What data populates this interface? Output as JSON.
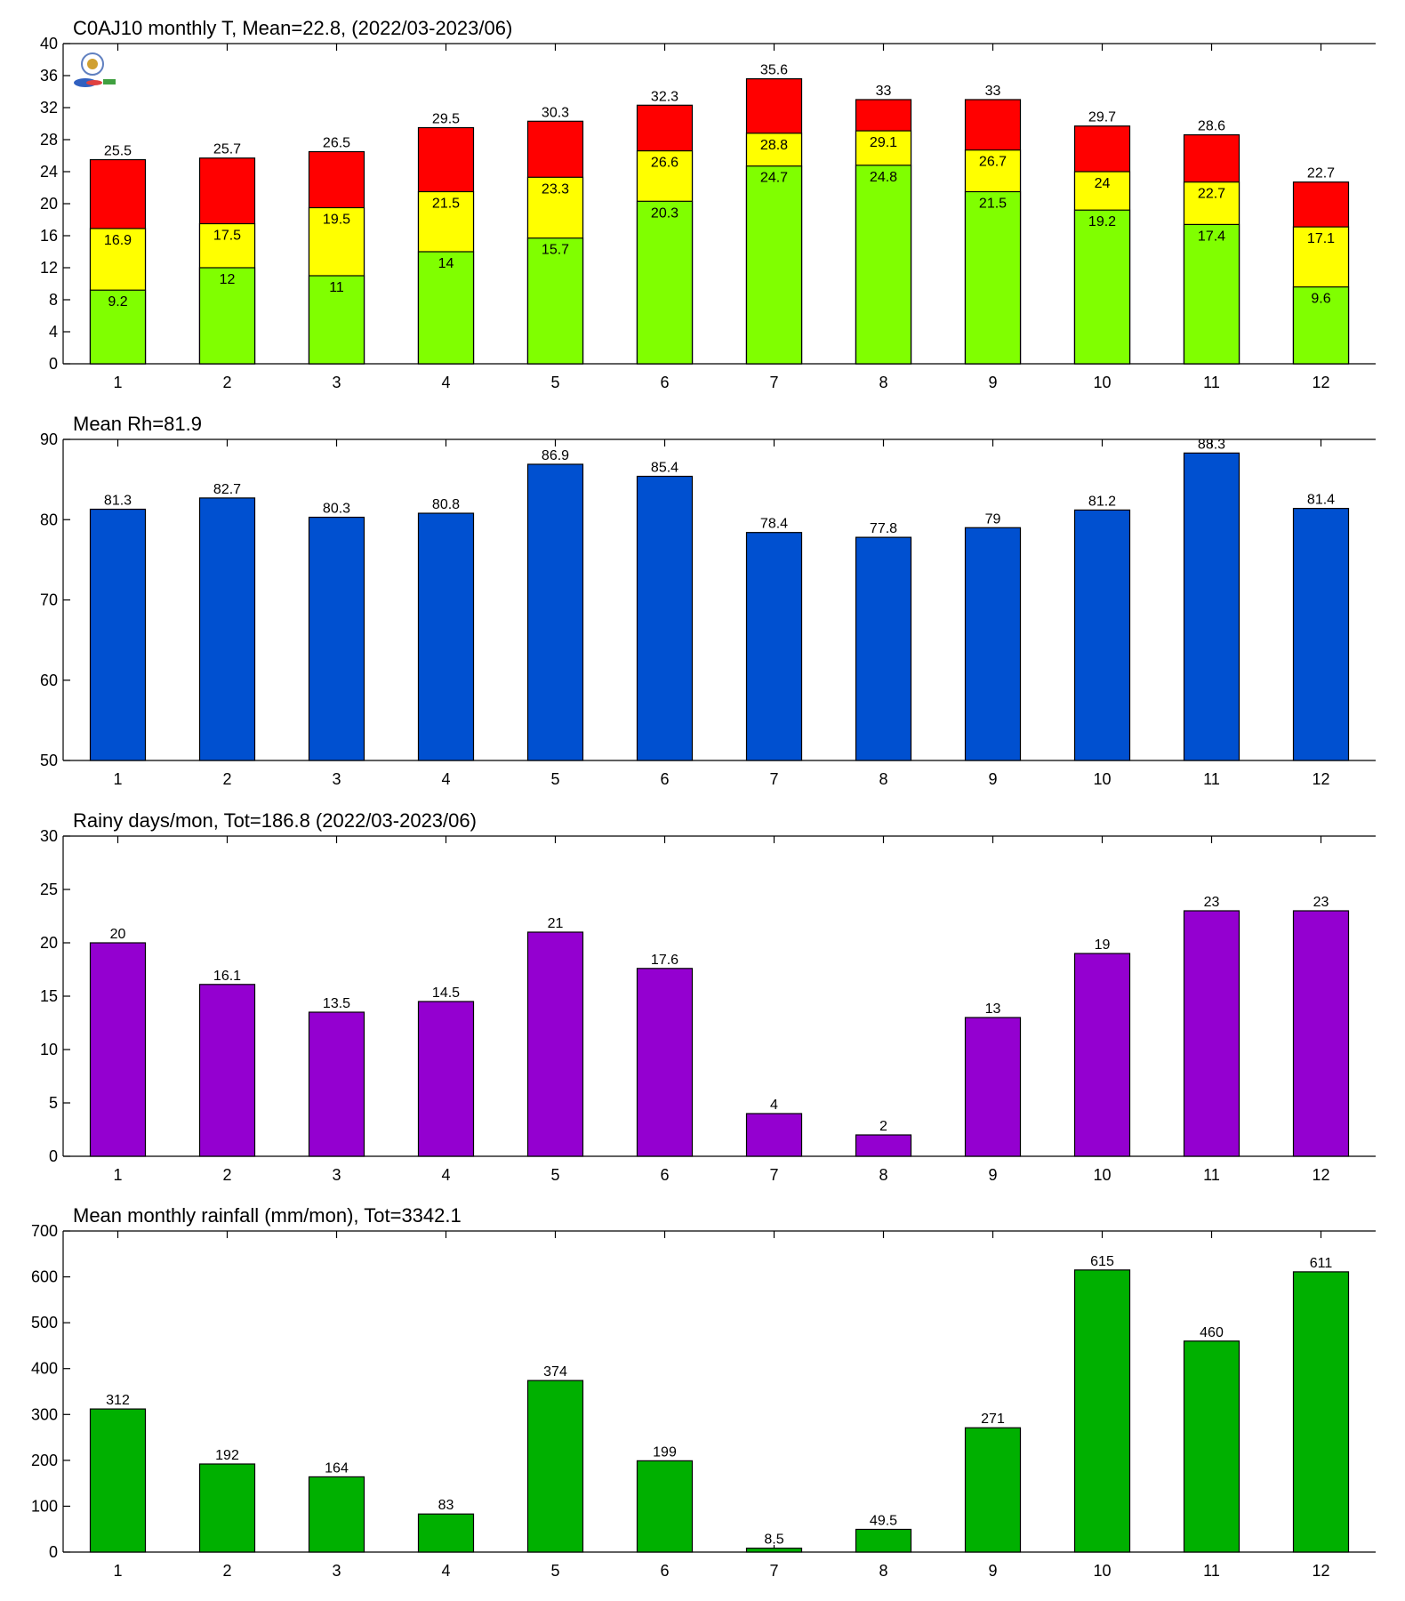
{
  "chart_data": [
    {
      "type": "bar",
      "stacked_overlay": true,
      "title": "C0AJ10 monthly T, Mean=22.8, (2022/03-2023/06)",
      "categories": [
        "1",
        "2",
        "3",
        "4",
        "5",
        "6",
        "7",
        "8",
        "9",
        "10",
        "11",
        "12"
      ],
      "ylim": [
        0,
        40
      ],
      "yticks": [
        0,
        4,
        8,
        12,
        16,
        20,
        24,
        28,
        32,
        36,
        40
      ],
      "series": [
        {
          "role": "max",
          "color": "#ff0000",
          "values": [
            25.5,
            25.7,
            26.5,
            29.5,
            30.3,
            32.3,
            35.6,
            33,
            33,
            29.7,
            28.6,
            22.7
          ]
        },
        {
          "role": "mean",
          "color": "#ffff00",
          "values": [
            16.9,
            17.5,
            19.5,
            21.5,
            23.3,
            26.6,
            28.8,
            29.1,
            26.7,
            24,
            22.7,
            17.1
          ]
        },
        {
          "role": "min",
          "color": "#80ff00",
          "values": [
            9.2,
            12,
            11,
            14,
            15.7,
            20.3,
            24.7,
            24.8,
            21.5,
            19.2,
            17.4,
            9.6
          ]
        }
      ]
    },
    {
      "type": "bar",
      "title": "Mean Rh=81.9",
      "categories": [
        "1",
        "2",
        "3",
        "4",
        "5",
        "6",
        "7",
        "8",
        "9",
        "10",
        "11",
        "12"
      ],
      "ylim": [
        50,
        90
      ],
      "yticks": [
        50,
        60,
        70,
        80,
        90
      ],
      "color": "#0050d0",
      "values": [
        81.3,
        82.7,
        80.3,
        80.8,
        86.9,
        85.4,
        78.4,
        77.8,
        79,
        81.2,
        88.3,
        81.4
      ]
    },
    {
      "type": "bar",
      "title": "Rainy days/mon, Tot=186.8 (2022/03-2023/06)",
      "categories": [
        "1",
        "2",
        "3",
        "4",
        "5",
        "6",
        "7",
        "8",
        "9",
        "10",
        "11",
        "12"
      ],
      "ylim": [
        0,
        30
      ],
      "yticks": [
        0,
        5,
        10,
        15,
        20,
        25,
        30
      ],
      "color": "#9400d0",
      "values": [
        20,
        16.1,
        13.5,
        14.5,
        21,
        17.6,
        4,
        2,
        13,
        19,
        23,
        23
      ]
    },
    {
      "type": "bar",
      "title": "Mean monthly rainfall (mm/mon), Tot=3342.1",
      "categories": [
        "1",
        "2",
        "3",
        "4",
        "5",
        "6",
        "7",
        "8",
        "9",
        "10",
        "11",
        "12"
      ],
      "ylim": [
        0,
        700
      ],
      "yticks": [
        0,
        100,
        200,
        300,
        400,
        500,
        600,
        700
      ],
      "color": "#00b000",
      "values": [
        312,
        192,
        164,
        83,
        374,
        199,
        8.5,
        49.5,
        271,
        615,
        460,
        611
      ]
    }
  ]
}
